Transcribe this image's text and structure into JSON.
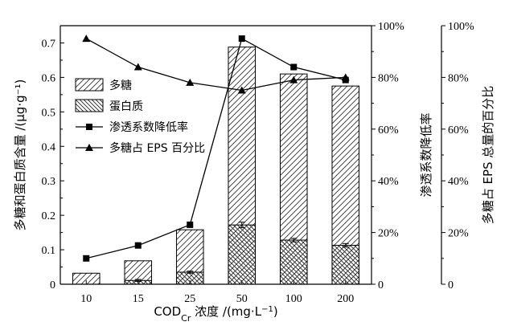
{
  "chart_data": {
    "type": "bar",
    "categories": [
      "10",
      "15",
      "25",
      "50",
      "100",
      "200"
    ],
    "xlabel": "COD_Cr 浓度 /(mg·L⁻¹)",
    "xlabel_parts": {
      "base": "COD",
      "sub": "Cr",
      "rest": " 浓度 /(mg·L",
      "sup": "−1",
      "close": ")"
    },
    "ylabel_left": "多糖和蛋白质含量 /(μg·g⁻¹)",
    "ylabel_mid": "渗透系数降低率",
    "ylabel_right": "多糖占 EPS 总量的百分比",
    "ylim_left": [
      0,
      0.75
    ],
    "left_ticks": [
      "0",
      "0.1",
      "0.2",
      "0.3",
      "0.4",
      "0.5",
      "0.6",
      "0.7"
    ],
    "ylim_pct": [
      0,
      100
    ],
    "pct_ticks": [
      "0",
      "20%",
      "40%",
      "60%",
      "80%",
      "100%"
    ],
    "series": [
      {
        "name": "多糖",
        "kind": "bar",
        "hatch": "forward",
        "values": [
          0.032,
          0.068,
          0.158,
          0.688,
          0.61,
          0.575
        ]
      },
      {
        "name": "蛋白质",
        "kind": "bar",
        "hatch": "backward",
        "values": [
          0.0,
          0.011,
          0.035,
          0.172,
          0.128,
          0.113
        ],
        "error": [
          0,
          0.003,
          0.003,
          0.008,
          0.005,
          0.005
        ]
      },
      {
        "name": "渗透系数降低率",
        "kind": "line",
        "marker": "square",
        "axis": "mid",
        "values": [
          10,
          15,
          23,
          95,
          84,
          79
        ]
      },
      {
        "name": "多糖占 EPS 百分比",
        "kind": "line",
        "marker": "triangle",
        "axis": "right",
        "values": [
          95,
          84,
          78,
          75,
          79,
          80
        ]
      }
    ],
    "legend_position": "left-center",
    "grid": false
  }
}
